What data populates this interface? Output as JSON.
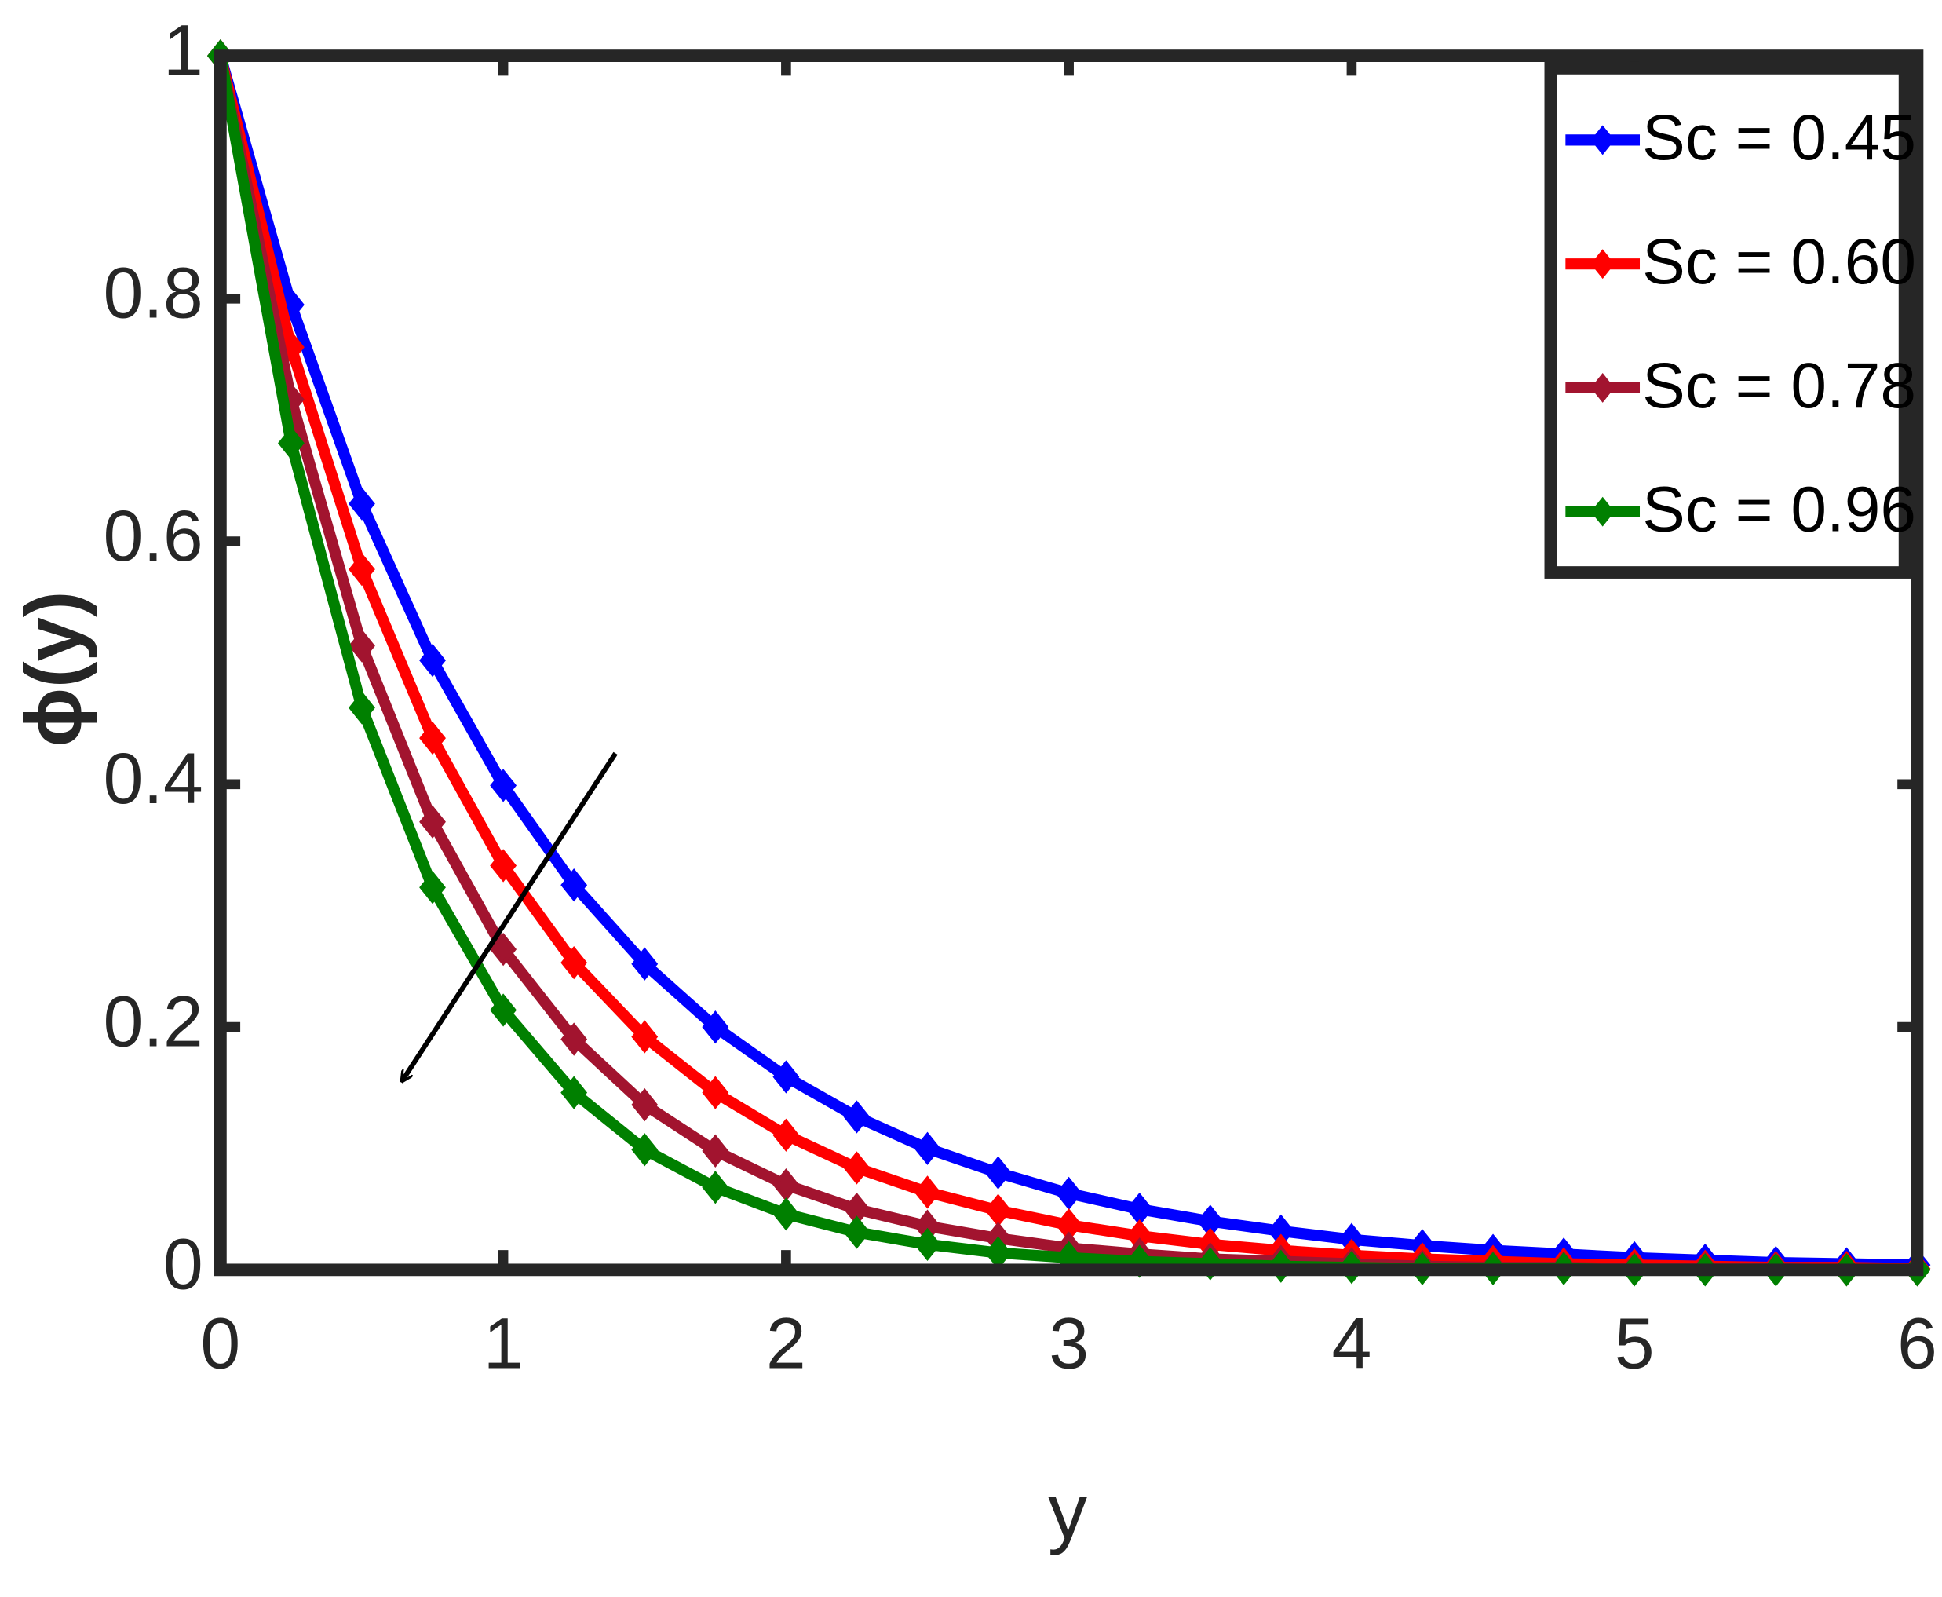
{
  "chart_data": {
    "type": "line",
    "xlabel": "y",
    "ylabel": "ϕ(y)",
    "x": [
      0,
      0.25,
      0.5,
      0.75,
      1,
      1.25,
      1.5,
      1.75,
      2,
      2.25,
      2.5,
      2.75,
      3,
      3.25,
      3.5,
      3.75,
      4,
      4.25,
      4.5,
      4.75,
      5,
      5.25,
      5.5,
      5.75,
      6
    ],
    "series": [
      {
        "name": "Sc = 0.45",
        "color": "#0000ff",
        "values": [
          1,
          0.795,
          0.631,
          0.502,
          0.399,
          0.317,
          0.252,
          0.2,
          0.159,
          0.126,
          0.1,
          0.08,
          0.063,
          0.05,
          0.04,
          0.032,
          0.025,
          0.02,
          0.016,
          0.013,
          0.01,
          0.008,
          0.006,
          0.005,
          0.004
        ]
      },
      {
        "name": "Sc = 0.60",
        "color": "#ff0000",
        "values": [
          1,
          0.76,
          0.577,
          0.438,
          0.333,
          0.253,
          0.192,
          0.146,
          0.111,
          0.084,
          0.064,
          0.049,
          0.037,
          0.028,
          0.021,
          0.016,
          0.012,
          0.009,
          0.007,
          0.005,
          0.004,
          0.003,
          0.002,
          0.002,
          0.001
        ]
      },
      {
        "name": "Sc = 0.78",
        "color": "#a2142f",
        "values": [
          1,
          0.717,
          0.514,
          0.369,
          0.264,
          0.19,
          0.136,
          0.098,
          0.07,
          0.05,
          0.036,
          0.026,
          0.018,
          0.013,
          0.009,
          0.007,
          0.005,
          0.003,
          0.002,
          0.002,
          0.001,
          0.001,
          0.001,
          0,
          0
        ]
      },
      {
        "name": "Sc = 0.96",
        "color": "#008000",
        "values": [
          1,
          0.681,
          0.463,
          0.315,
          0.214,
          0.146,
          0.099,
          0.068,
          0.046,
          0.031,
          0.021,
          0.014,
          0.01,
          0.007,
          0.005,
          0.003,
          0.002,
          0.001,
          0.001,
          0.001,
          0,
          0,
          0,
          0,
          0
        ]
      }
    ],
    "xlim": [
      0,
      6
    ],
    "ylim": [
      0,
      1
    ],
    "xticks": [
      0,
      1,
      2,
      3,
      4,
      5,
      6
    ],
    "yticks": [
      0,
      0.2,
      0.4,
      0.6,
      0.8,
      1
    ],
    "legend": "upper right",
    "grid": false
  }
}
